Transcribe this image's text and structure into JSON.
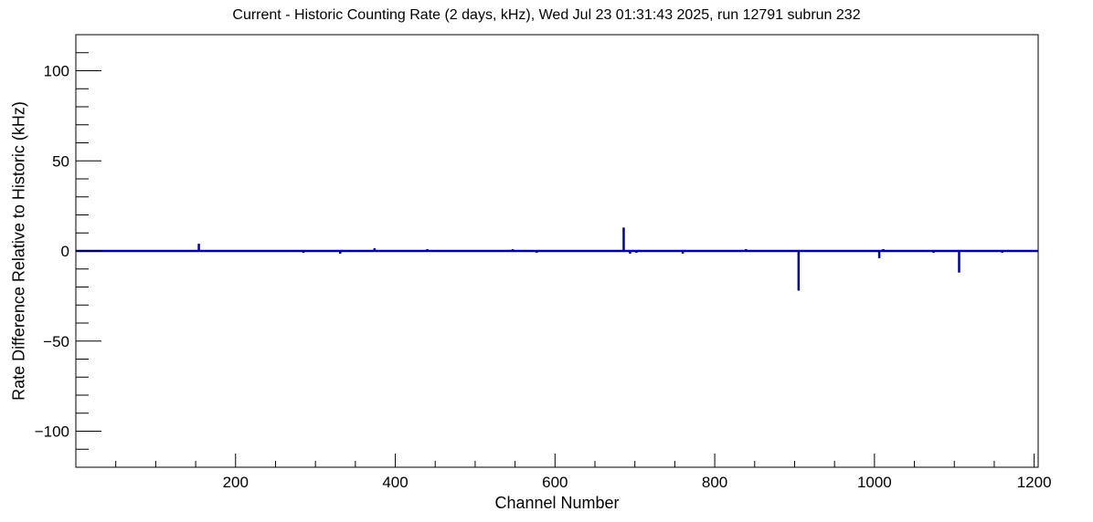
{
  "chart_data": {
    "type": "line",
    "subtype": "root-histogram-spikes",
    "title": "Current - Historic Counting Rate (2 days, kHz), Wed Jul 23 01:31:43 2025, run 12791 subrun 232",
    "xlabel": "Channel Number",
    "ylabel": "Rate Difference Relative to Historic (kHz)",
    "xlim": [
      0,
      1205
    ],
    "ylim": [
      -120,
      120
    ],
    "x_major_ticks": [
      200,
      400,
      600,
      800,
      1000,
      1200
    ],
    "x_minor_step": 50,
    "y_major_ticks": [
      -100,
      -50,
      0,
      50,
      100
    ],
    "y_minor_step": 10,
    "grid": false,
    "legend": "none",
    "baseline_value": 0,
    "line_color": "#0000a0",
    "frame_color": "#000000",
    "background_color": "#ffffff",
    "spikes": [
      {
        "channel": 154,
        "value": 4
      },
      {
        "channel": 285,
        "value": -1
      },
      {
        "channel": 331,
        "value": -1.5
      },
      {
        "channel": 374,
        "value": 1.5
      },
      {
        "channel": 440,
        "value": 1
      },
      {
        "channel": 547,
        "value": 1
      },
      {
        "channel": 577,
        "value": -1
      },
      {
        "channel": 686,
        "value": 13
      },
      {
        "channel": 694,
        "value": -1.5
      },
      {
        "channel": 702,
        "value": -1
      },
      {
        "channel": 760,
        "value": -1.5
      },
      {
        "channel": 839,
        "value": 1
      },
      {
        "channel": 905,
        "value": -22
      },
      {
        "channel": 1006,
        "value": -4
      },
      {
        "channel": 1011,
        "value": 1
      },
      {
        "channel": 1074,
        "value": -1
      },
      {
        "channel": 1106,
        "value": -12
      },
      {
        "channel": 1160,
        "value": -1
      }
    ]
  }
}
